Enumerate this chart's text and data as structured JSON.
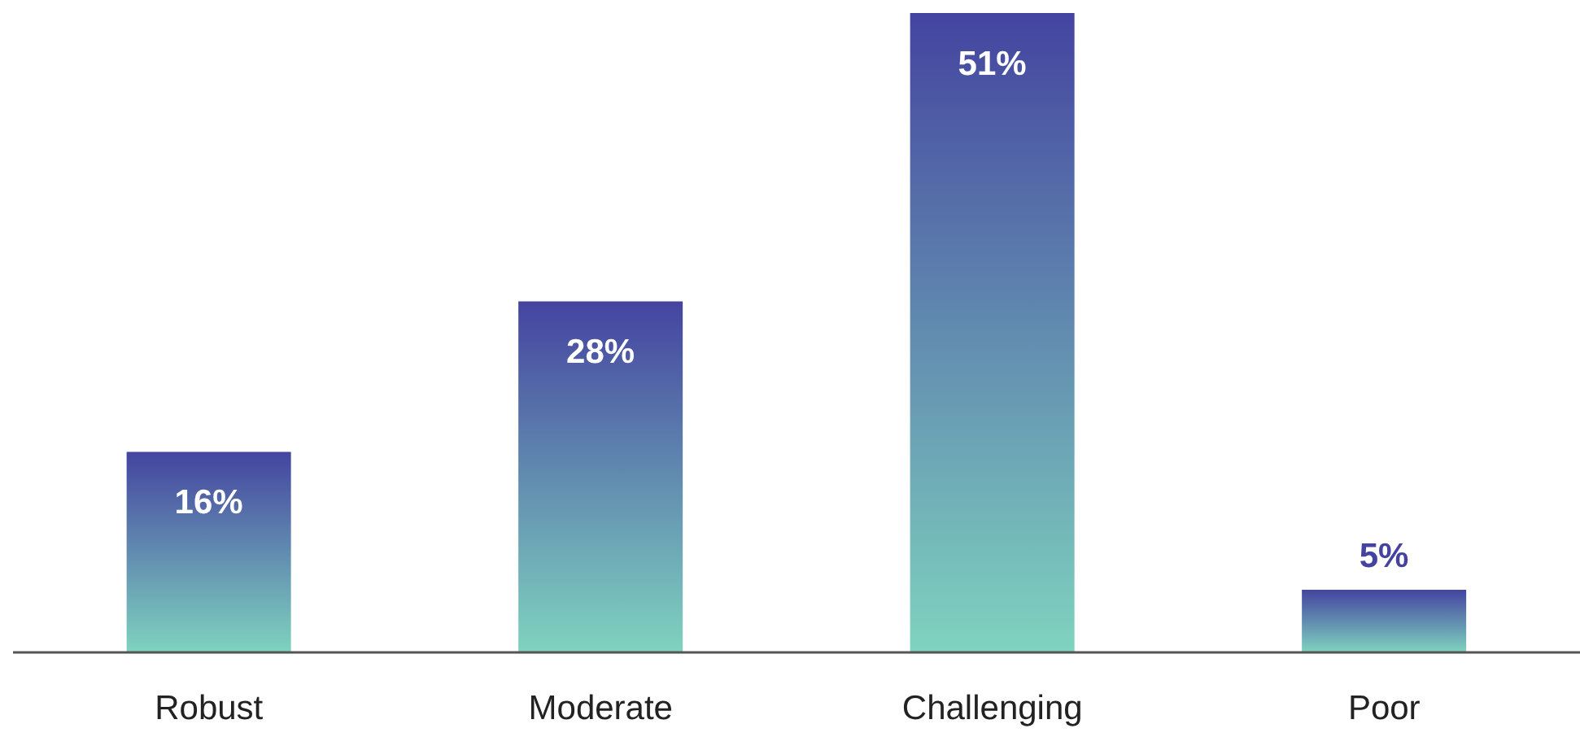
{
  "chart_data": {
    "type": "bar",
    "categories": [
      "Robust",
      "Moderate",
      "Challenging",
      "Poor"
    ],
    "values": [
      16,
      28,
      51,
      5
    ],
    "value_labels": [
      "16%",
      "28%",
      "51%",
      "5%"
    ],
    "color": "#4444a0",
    "grid": false,
    "legend": false
  }
}
